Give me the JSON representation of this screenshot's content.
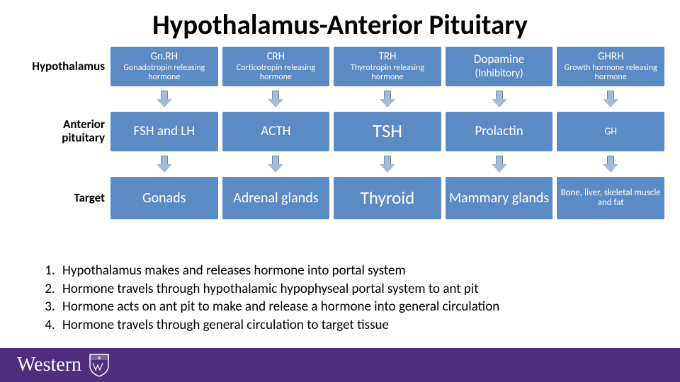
{
  "title": {
    "text": "Hypothalamus-Anterior Pituitary",
    "fontsize": 39
  },
  "colors": {
    "box_blue": "#5b8bc4",
    "arrow_fill": "#a6b9d5",
    "arrow_border": "#6f87ab",
    "footer": "#4f2d7f",
    "text_black": "#000000",
    "text_white": "#ffffff"
  },
  "row_labels": {
    "r1": "Hypothalamus",
    "r2_a": "Anterior",
    "r2_b": "pituitary",
    "r3": "Target",
    "fontsize": 17
  },
  "heights": {
    "r1": 56,
    "r2": 56,
    "r3": 60
  },
  "grid": {
    "r1": [
      {
        "top": "Gn.RH",
        "top_fs": 15,
        "bot": "Gonadotropin releasing hormone",
        "bot_fs": 12
      },
      {
        "top": "CRH",
        "top_fs": 15,
        "bot": "Corticotropin releasing hormone",
        "bot_fs": 12
      },
      {
        "top": "TRH",
        "top_fs": 15,
        "bot": "Thyrotropin releasing hormone",
        "bot_fs": 12
      },
      {
        "top": "Dopamine",
        "top_fs": 17,
        "bot": "(Inhibitory)",
        "bot_fs": 15
      },
      {
        "top": "GHRH",
        "top_fs": 15,
        "bot": "Growth hormone releasing hormone",
        "bot_fs": 12
      }
    ],
    "r2": [
      {
        "top": "FSH and LH",
        "top_fs": 19
      },
      {
        "top": "ACTH",
        "top_fs": 19
      },
      {
        "top": "TSH",
        "top_fs": 27
      },
      {
        "top": "Prolactin",
        "top_fs": 19
      },
      {
        "top": "GH",
        "top_fs": 14
      }
    ],
    "r3": [
      {
        "top": "Gonads",
        "top_fs": 20
      },
      {
        "top": "Adrenal glands",
        "top_fs": 20
      },
      {
        "top": "Thyroid",
        "top_fs": 25
      },
      {
        "top": "Mammary glands",
        "top_fs": 20
      },
      {
        "top": "Bone, liver, skeletal muscle and fat",
        "top_fs": 13
      }
    ]
  },
  "list": {
    "fontsize": 19,
    "items": [
      "Hypothalamus makes and releases hormone into portal system",
      "Hormone travels through hypothalamic hypophyseal portal system to ant pit",
      "Hormone acts on ant pit to make and release a hormone into general circulation",
      "Hormone travels through general circulation to target tissue"
    ]
  },
  "logo": {
    "text": "Western"
  }
}
